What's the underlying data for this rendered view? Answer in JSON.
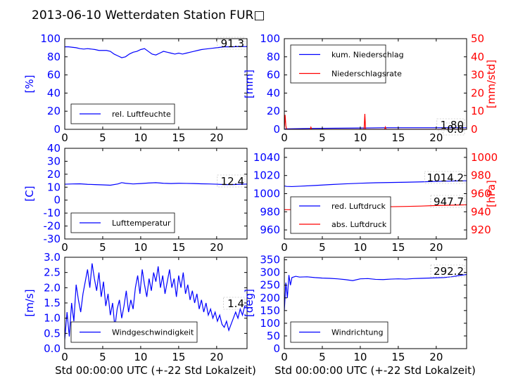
{
  "figure": {
    "title": "2013-06-10 Wetterdaten Station FUR□",
    "xlabel": "Std 00:00:00 UTC (+-22 Std Lokalzeit)"
  },
  "colors": {
    "primary": "#0000ff",
    "secondary": "#ff0000",
    "axis": "#000000"
  },
  "chart_data": [
    {
      "type": "line",
      "panel": "humidity",
      "ylabel": "[%]",
      "xlim": [
        0,
        24
      ],
      "ylim": [
        0,
        100
      ],
      "xticks": [
        0,
        5,
        10,
        15,
        20
      ],
      "yticks": [
        0,
        20,
        40,
        60,
        80,
        100
      ],
      "current_value": "91.3",
      "legend": {
        "placement": "lower-left"
      },
      "series": [
        {
          "name": "rel. Luftfeuchte",
          "color": "#0000ff",
          "x": [
            0,
            0.5,
            1,
            1.5,
            2,
            2.5,
            3,
            3.5,
            4,
            4.5,
            5,
            5.5,
            6,
            6.5,
            7,
            7.5,
            8,
            8.5,
            9,
            9.5,
            10,
            10.5,
            11,
            11.5,
            12,
            12.5,
            13,
            13.5,
            14,
            14.5,
            15,
            15.5,
            16,
            16.5,
            17,
            17.5,
            18,
            18.5,
            19,
            19.5,
            20,
            20.5,
            21,
            21.5,
            22,
            22.5,
            23,
            23.5,
            24
          ],
          "y": [
            91,
            91,
            90.5,
            90,
            89,
            88.5,
            89,
            88.5,
            88,
            87,
            87,
            87,
            86,
            83,
            81,
            79,
            80,
            83,
            85,
            86,
            88,
            89,
            86,
            83,
            82,
            84,
            86,
            85,
            84,
            83,
            84,
            83,
            84,
            85,
            86,
            87,
            88,
            88.5,
            89,
            89.5,
            90,
            90.5,
            91,
            91,
            91,
            91.2,
            91.3,
            91.3,
            91.3
          ]
        }
      ]
    },
    {
      "type": "line",
      "panel": "precipitation",
      "ylabel": "[mm]",
      "y2label": "[mm/std]",
      "xlim": [
        0,
        24
      ],
      "ylim": [
        0,
        100
      ],
      "y2lim": [
        0,
        50
      ],
      "xticks": [
        0,
        5,
        10,
        15,
        20
      ],
      "yticks": [
        0,
        20,
        40,
        60,
        80,
        100
      ],
      "y2ticks": [
        0,
        10,
        20,
        30,
        40,
        50
      ],
      "current_values": [
        "1.80",
        "0.0"
      ],
      "legend": {
        "placement": "upper-left"
      },
      "series": [
        {
          "name": "kum. Niederschlag",
          "color": "#0000ff",
          "axis": "left",
          "x": [
            0,
            0.2,
            3.5,
            10.6,
            13.3,
            24
          ],
          "y": [
            0,
            0.5,
            1.0,
            1.5,
            1.8,
            1.8
          ]
        },
        {
          "name": "Niederschlagsrate",
          "color": "#ff0000",
          "axis": "right",
          "x": [
            0,
            0.1,
            0.2,
            0.3,
            3.4,
            3.5,
            3.6,
            10.5,
            10.6,
            10.7,
            13.2,
            13.3,
            13.4,
            24
          ],
          "y": [
            0,
            8,
            2,
            0,
            0,
            1.2,
            0,
            0,
            8.5,
            0,
            0,
            1.3,
            0,
            0
          ]
        }
      ]
    },
    {
      "type": "line",
      "panel": "temperature",
      "ylabel": "[C]",
      "xlim": [
        0,
        24
      ],
      "ylim": [
        -30,
        40
      ],
      "xticks": [
        0,
        5,
        10,
        15,
        20
      ],
      "yticks": [
        -30,
        -20,
        -10,
        0,
        10,
        20,
        30,
        40
      ],
      "current_value": "12.4",
      "legend": {
        "placement": "lower-left"
      },
      "series": [
        {
          "name": "Lufttemperatur",
          "color": "#0000ff",
          "x": [
            0,
            1,
            2,
            3,
            4,
            5,
            6,
            7,
            7.5,
            8,
            9,
            10,
            11,
            12,
            13,
            14,
            15,
            16,
            17,
            18,
            19,
            20,
            21,
            22,
            23,
            24
          ],
          "y": [
            12.3,
            12.5,
            12.6,
            12.2,
            12.0,
            11.8,
            11.5,
            12.5,
            13.5,
            13.0,
            12.5,
            12.8,
            13.2,
            13.5,
            13.0,
            12.8,
            13.0,
            12.9,
            12.8,
            12.6,
            12.5,
            12.3,
            12.0,
            12.0,
            12.2,
            12.4
          ]
        }
      ]
    },
    {
      "type": "line",
      "panel": "pressure",
      "ylabel": "",
      "y2label": "[hPa]",
      "xlim": [
        0,
        24
      ],
      "ylim": [
        950,
        1050
      ],
      "y2lim": [
        910,
        1010
      ],
      "xticks": [
        0,
        5,
        10,
        15,
        20
      ],
      "yticks": [
        960,
        980,
        1000,
        1020,
        1040
      ],
      "y2ticks": [
        920,
        940,
        960,
        980,
        1000
      ],
      "current_values": [
        "1014.2",
        "947.7"
      ],
      "legend": {
        "placement": "lower-left"
      },
      "series": [
        {
          "name": "red. Luftdruck",
          "color": "#0000ff",
          "axis": "left",
          "x": [
            0,
            0.3,
            1,
            2,
            4,
            6,
            8,
            10,
            12,
            14,
            16,
            18,
            20,
            22,
            24
          ],
          "y": [
            1008.5,
            1008,
            1007.8,
            1008.2,
            1009,
            1010,
            1010.8,
            1011.5,
            1012,
            1012.3,
            1012.6,
            1013,
            1013.5,
            1013.9,
            1014.2
          ]
        },
        {
          "name": "abs. Luftdruck",
          "color": "#ff0000",
          "axis": "right",
          "x": [
            0,
            2,
            4,
            6,
            8,
            10,
            12,
            14,
            16,
            18,
            20,
            22,
            24
          ],
          "y": [
            942.3,
            942.4,
            943.0,
            943.8,
            944.4,
            945.0,
            945.3,
            945.6,
            945.9,
            946.3,
            946.9,
            947.3,
            947.7
          ]
        }
      ]
    },
    {
      "type": "line",
      "panel": "wind-speed",
      "ylabel": "[m/s]",
      "xlim": [
        0,
        24
      ],
      "ylim": [
        0,
        3
      ],
      "xticks": [
        0,
        5,
        10,
        15,
        20
      ],
      "yticks": [
        0.0,
        0.5,
        1.0,
        1.5,
        2.0,
        2.5,
        3.0
      ],
      "current_value": "1.4",
      "legend": {
        "placement": "lower-center"
      },
      "series": [
        {
          "name": "Windgeschwindigkeit",
          "color": "#0000ff",
          "x": [
            0,
            0.3,
            0.6,
            0.9,
            1.2,
            1.5,
            1.8,
            2.1,
            2.4,
            2.7,
            3.0,
            3.3,
            3.6,
            3.9,
            4.2,
            4.5,
            4.8,
            5.1,
            5.4,
            5.7,
            6.0,
            6.3,
            6.6,
            6.9,
            7.2,
            7.5,
            7.8,
            8.1,
            8.4,
            8.7,
            9.0,
            9.3,
            9.6,
            9.9,
            10.2,
            10.5,
            10.8,
            11.1,
            11.4,
            11.7,
            12.0,
            12.3,
            12.6,
            12.9,
            13.2,
            13.5,
            13.8,
            14.1,
            14.4,
            14.7,
            15.0,
            15.3,
            15.6,
            15.9,
            16.2,
            16.5,
            16.8,
            17.1,
            17.4,
            17.7,
            18.0,
            18.3,
            18.6,
            18.9,
            19.2,
            19.5,
            19.8,
            20.1,
            20.4,
            20.7,
            21.0,
            21.3,
            21.6,
            21.9,
            22.2,
            22.5,
            22.8,
            23.1,
            23.4,
            23.7,
            24.0
          ],
          "y": [
            0.3,
            1.2,
            0.4,
            1.5,
            0.9,
            2.1,
            1.6,
            1.2,
            1.8,
            2.2,
            2.6,
            2.0,
            2.8,
            2.3,
            1.9,
            2.5,
            1.7,
            2.2,
            1.4,
            1.8,
            1.1,
            1.5,
            0.7,
            1.3,
            1.6,
            1.0,
            1.4,
            1.9,
            1.2,
            1.6,
            1.3,
            2.0,
            2.4,
            1.8,
            2.6,
            2.1,
            1.7,
            2.3,
            1.9,
            2.5,
            2.2,
            2.7,
            2.0,
            2.4,
            1.8,
            2.2,
            2.6,
            2.0,
            2.3,
            1.7,
            2.4,
            2.0,
            2.5,
            1.8,
            2.1,
            1.6,
            1.9,
            1.5,
            1.8,
            1.3,
            1.6,
            1.2,
            1.5,
            1.1,
            1.3,
            1.0,
            1.2,
            0.9,
            1.1,
            0.8,
            0.7,
            0.9,
            0.6,
            0.8,
            1.0,
            1.2,
            1.0,
            1.3,
            1.1,
            1.4,
            1.4
          ]
        }
      ]
    },
    {
      "type": "line",
      "panel": "wind-direction",
      "ylabel": "[deg]",
      "xlim": [
        0,
        24
      ],
      "ylim": [
        0,
        360
      ],
      "xticks": [
        0,
        5,
        10,
        15,
        20
      ],
      "yticks": [
        0,
        50,
        100,
        150,
        200,
        250,
        300,
        350
      ],
      "current_value": "292.2",
      "legend": {
        "placement": "lower-left"
      },
      "series": [
        {
          "name": "Windrichtung",
          "color": "#0000ff",
          "x": [
            0,
            0.2,
            0.4,
            0.6,
            0.8,
            1,
            1.5,
            2,
            3,
            4,
            5,
            6,
            7,
            8,
            9,
            10,
            11,
            12,
            13,
            14,
            15,
            16,
            17,
            18,
            19,
            20,
            21,
            22,
            23,
            24
          ],
          "y": [
            150,
            260,
            200,
            290,
            250,
            280,
            285,
            282,
            283,
            280,
            278,
            277,
            275,
            272,
            268,
            275,
            276,
            273,
            272,
            274,
            275,
            274,
            276,
            277,
            278,
            279,
            280,
            283,
            288,
            292.2
          ]
        }
      ]
    }
  ]
}
